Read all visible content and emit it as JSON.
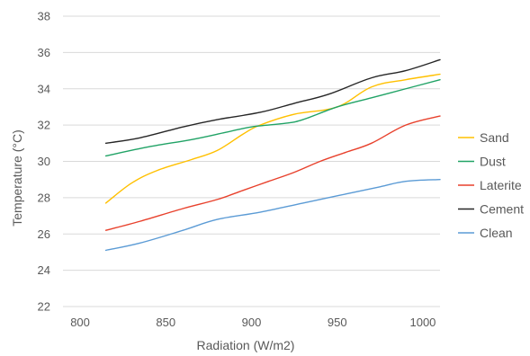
{
  "chart_data": {
    "type": "line",
    "title": "",
    "xlabel": "Radiation (W/m2)",
    "ylabel": "Temperature (°C)",
    "xlim": [
      790,
      1010
    ],
    "ylim": [
      22,
      38
    ],
    "x_ticks": [
      800,
      850,
      900,
      950,
      1000
    ],
    "y_ticks": [
      22,
      24,
      26,
      28,
      30,
      32,
      34,
      36,
      38
    ],
    "grid": "horizontal",
    "legend_position": "right",
    "series": [
      {
        "name": "Sand",
        "color": "#ffc000",
        "x": [
          815,
          830,
          845,
          865,
          880,
          895,
          905,
          925,
          950,
          970,
          990,
          1010
        ],
        "y": [
          27.7,
          28.8,
          29.5,
          30.1,
          30.6,
          31.5,
          32.0,
          32.6,
          33.0,
          34.1,
          34.5,
          34.8
        ]
      },
      {
        "name": "Dust",
        "color": "#21a366",
        "x": [
          815,
          840,
          865,
          885,
          900,
          920,
          930,
          950,
          970,
          990,
          1010
        ],
        "y": [
          30.3,
          30.8,
          31.2,
          31.6,
          31.9,
          32.1,
          32.3,
          33.0,
          33.5,
          34.0,
          34.5
        ]
      },
      {
        "name": "Laterite",
        "color": "#e8412c",
        "x": [
          815,
          835,
          860,
          880,
          895,
          910,
          925,
          940,
          955,
          970,
          990,
          1010
        ],
        "y": [
          26.2,
          26.7,
          27.4,
          27.9,
          28.4,
          28.9,
          29.4,
          30.0,
          30.5,
          31.0,
          32.0,
          32.5
        ]
      },
      {
        "name": "Cement",
        "color": "#262626",
        "x": [
          815,
          835,
          860,
          880,
          905,
          925,
          945,
          970,
          990,
          1010
        ],
        "y": [
          31.0,
          31.3,
          31.9,
          32.3,
          32.7,
          33.2,
          33.7,
          34.6,
          35.0,
          35.6
        ]
      },
      {
        "name": "Clean",
        "color": "#5b9bd5",
        "x": [
          815,
          835,
          860,
          880,
          905,
          930,
          955,
          975,
          990,
          1010
        ],
        "y": [
          25.1,
          25.5,
          26.2,
          26.8,
          27.2,
          27.7,
          28.2,
          28.6,
          28.9,
          29.0
        ]
      }
    ]
  }
}
